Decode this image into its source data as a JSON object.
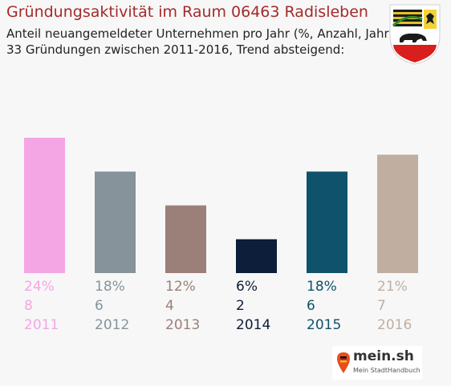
{
  "header": {
    "title": "Gründungsaktivität im Raum 06463 Radisleben",
    "subtitle": "Anteil neuangemeldeter Unternehmen pro Jahr (%, Anzahl, Jahr)",
    "summary": "33 Gründungen zwischen 2011-2016, Trend absteigend:"
  },
  "logo": {
    "name": "mein.sh",
    "tagline": "Mein StadtHandbuch"
  },
  "crest": {
    "icon": "coat-of-arms-icon"
  },
  "chart_data": {
    "type": "bar",
    "title": "Gründungsaktivität im Raum 06463 Radisleben",
    "categories": [
      "2011",
      "2012",
      "2013",
      "2014",
      "2015",
      "2016"
    ],
    "values": [
      24,
      18,
      12,
      6,
      18,
      21
    ],
    "counts": [
      "8",
      "6",
      "4",
      "2",
      "6",
      "7"
    ],
    "percent_labels": [
      "24%",
      "18%",
      "12%",
      "6%",
      "18%",
      "21%"
    ],
    "colors": [
      "#f4a6e4",
      "#86939a",
      "#9b7f79",
      "#0d1e3a",
      "#0f526c",
      "#c0aea0"
    ],
    "ylim": [
      0,
      24
    ],
    "grid": false,
    "legend": "none"
  }
}
